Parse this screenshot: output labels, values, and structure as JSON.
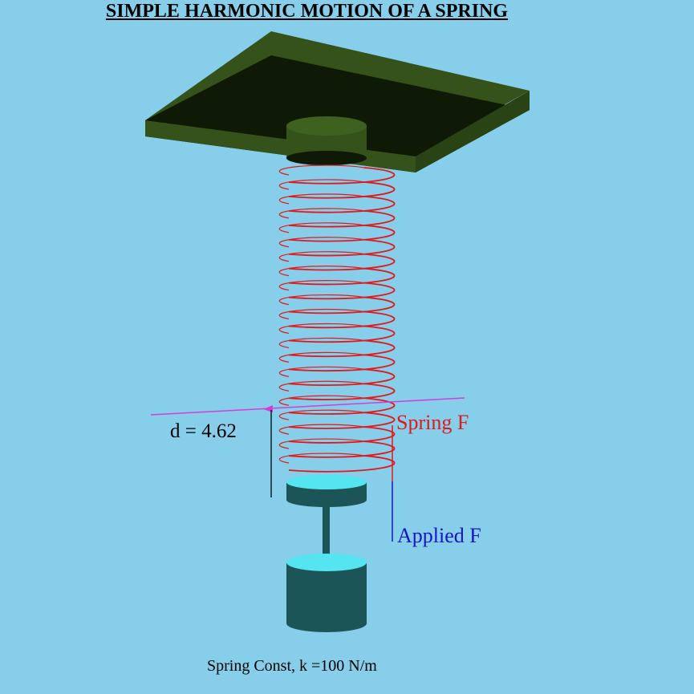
{
  "title": "SIMPLE HARMONIC MOTION OF A SPRING",
  "displacement_label": "d = 4.62",
  "spring_force_label": "Spring F",
  "applied_force_label": "Applied F",
  "spring_constant_label": "Spring Const, k =100 N/m",
  "colors": {
    "background": "#87CEEB",
    "ceiling_top": "#0F1A06",
    "ceiling_side": "#34521A",
    "mount": "#34521A",
    "spring": "#E01A1A",
    "equilibrium_line": "#D040D8",
    "mass_body": "#1B5558",
    "mass_top": "#55E5F0",
    "spring_force": "#E01A1A",
    "applied_force": "#1515C8"
  },
  "icons": {
    "ceiling": "ceiling-plate",
    "spring": "coil-spring",
    "mass": "hanging-mass"
  }
}
